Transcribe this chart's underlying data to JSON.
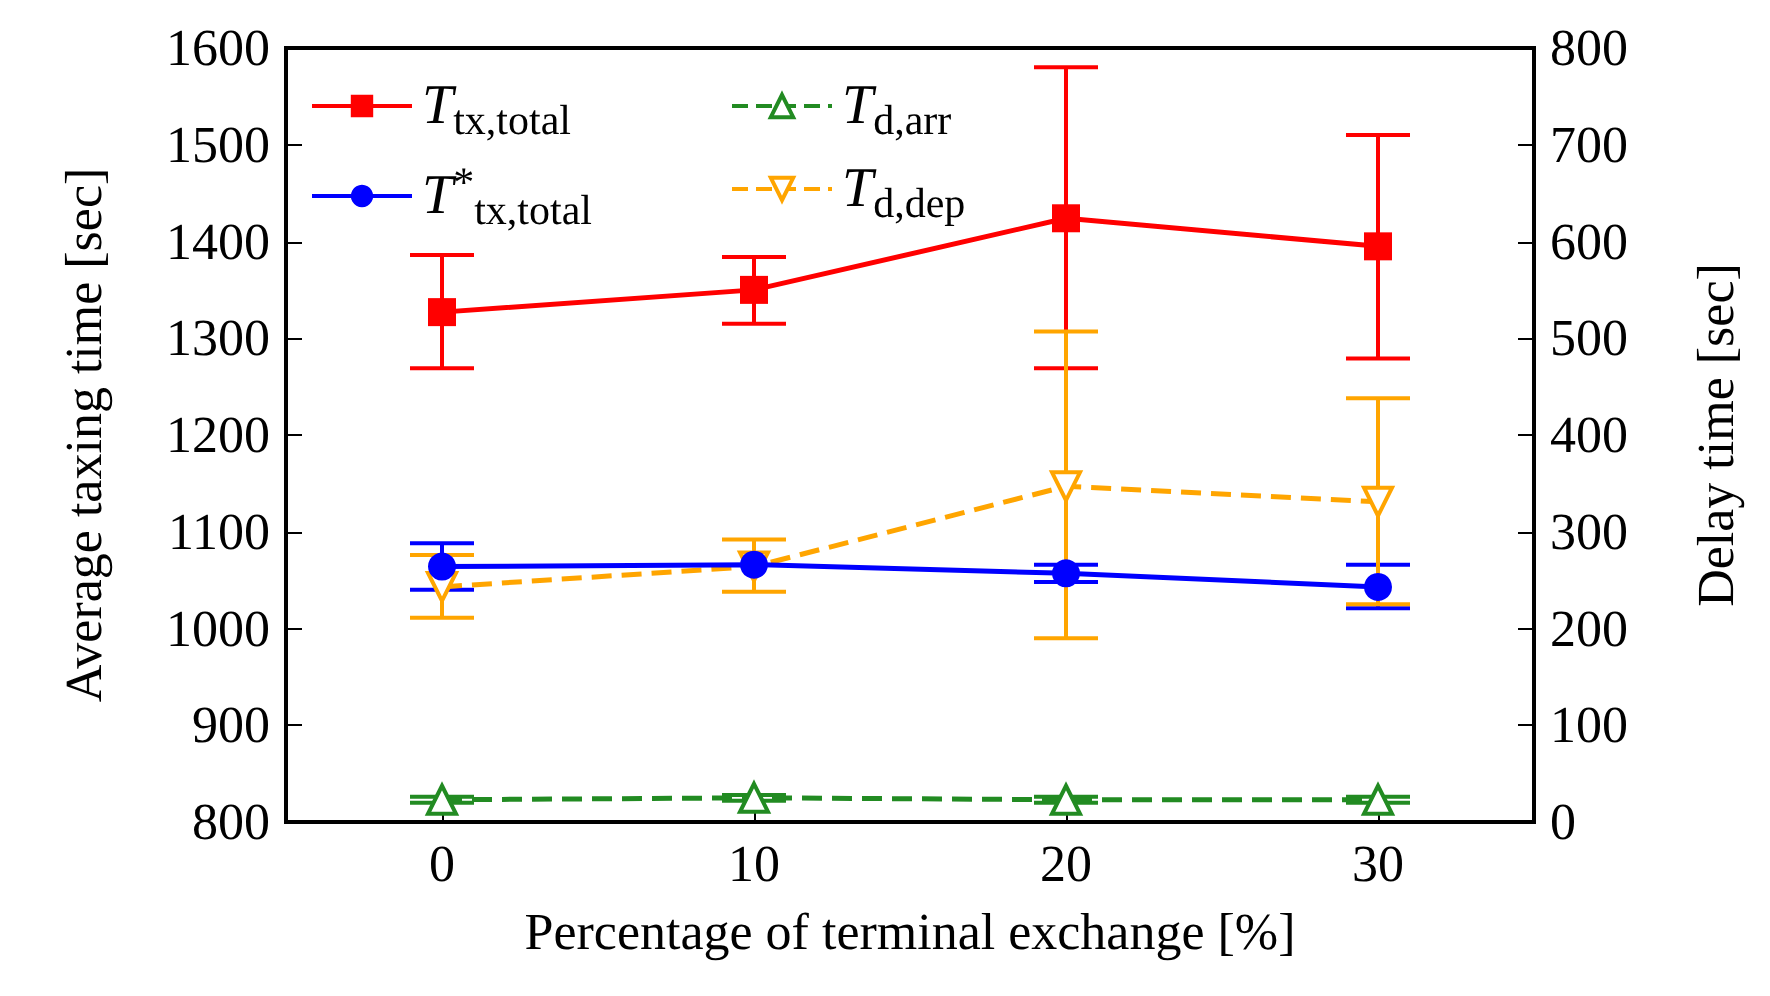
{
  "chart_data": {
    "type": "line",
    "xlabel": "Percentage of terminal exchange [%]",
    "ylabel": "Average taxing time [sec]",
    "y2label": "Delay time [sec]",
    "x": [
      0,
      10,
      20,
      30
    ],
    "xlim": [
      -5,
      35
    ],
    "xticks": [
      0,
      10,
      20,
      30
    ],
    "ylim": [
      800,
      1600
    ],
    "yticks": [
      800,
      900,
      1000,
      1100,
      1200,
      1300,
      1400,
      1500,
      1600
    ],
    "y2lim": [
      0,
      800
    ],
    "y2ticks": [
      0,
      100,
      200,
      300,
      400,
      500,
      600,
      700,
      800
    ],
    "grid": false,
    "legend": "top left",
    "series": [
      {
        "name": "T$_{tx,total}$",
        "color": "#ff0000",
        "marker": "square",
        "line_style": "solid",
        "values": [
          1327,
          1350,
          1424,
          1395
        ],
        "errors": [
          [
            1269,
            1386
          ],
          [
            1315,
            1384
          ],
          [
            1269,
            1580
          ],
          [
            1279,
            1510
          ]
        ]
      },
      {
        "name": "T$^{*}$$_{tx,total}$",
        "color": "#0000ff",
        "marker": "circle",
        "line_style": "solid",
        "values": [
          1064,
          1066,
          1057,
          1043
        ],
        "errors": [
          [
            1040,
            1088
          ],
          null,
          [
            1048,
            1066
          ],
          [
            1021,
            1066
          ]
        ]
      },
      {
        "name": "T$_{d,arr}$",
        "color": "#228b22",
        "marker": "triangle",
        "line_style": "dashed",
        "axis": "y2",
        "values": [
          23,
          25,
          23,
          23
        ],
        "errors": [
          [
            20,
            26
          ],
          [
            22,
            28
          ],
          [
            20,
            26
          ],
          [
            20,
            26
          ]
        ]
      },
      {
        "name": "T$_{d,dep}$",
        "color": "#ffa500",
        "marker": "triangle_down",
        "line_style": "dashed",
        "axis": "y2",
        "values": [
          243,
          264,
          347,
          331
        ],
        "errors": [
          [
            211,
            276
          ],
          [
            238,
            292
          ],
          [
            190,
            507
          ],
          [
            225,
            438
          ]
        ]
      }
    ]
  }
}
